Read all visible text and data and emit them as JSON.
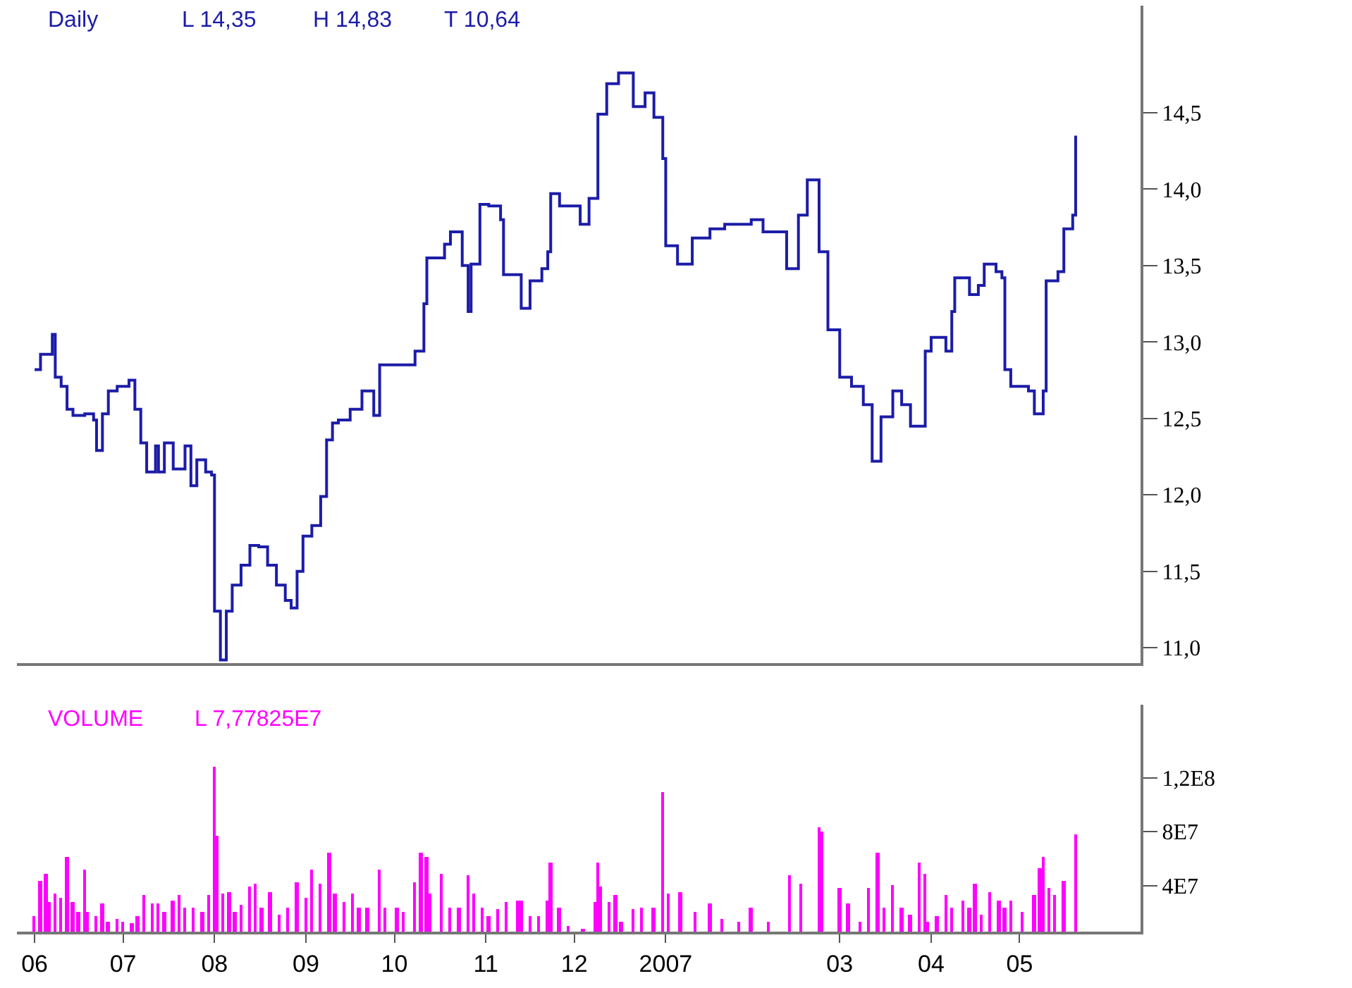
{
  "chart_data": [
    {
      "type": "step",
      "title": "Daily",
      "annotations": [
        "L 14,35",
        "H 14,83",
        "T 10,64"
      ],
      "x": [
        "2006-06-01",
        "2006-06-03",
        "2006-06-07",
        "2006-06-08",
        "2006-06-10",
        "2006-06-12",
        "2006-06-14",
        "2006-06-18",
        "2006-06-21",
        "2006-06-22",
        "2006-06-24",
        "2006-06-26",
        "2006-06-29",
        "2006-07-03",
        "2006-07-05",
        "2006-07-07",
        "2006-07-09",
        "2006-07-12",
        "2006-07-13",
        "2006-07-15",
        "2006-07-18",
        "2006-07-22",
        "2006-07-24",
        "2006-07-26",
        "2006-07-29",
        "2006-07-31",
        "2006-08-01",
        "2006-08-03",
        "2006-08-05",
        "2006-08-07",
        "2006-08-10",
        "2006-08-13",
        "2006-08-16",
        "2006-08-19",
        "2006-08-22",
        "2006-08-25",
        "2006-08-27",
        "2006-08-29",
        "2006-08-31",
        "2006-09-03",
        "2006-09-06",
        "2006-09-08",
        "2006-09-10",
        "2006-09-12",
        "2006-09-16",
        "2006-09-20",
        "2006-09-24",
        "2006-09-26",
        "2006-10-03",
        "2006-10-08",
        "2006-10-11",
        "2006-10-12",
        "2006-10-18",
        "2006-10-20",
        "2006-10-24",
        "2006-10-26",
        "2006-10-27",
        "2006-10-30",
        "2006-11-02",
        "2006-11-06",
        "2006-11-07",
        "2006-11-11",
        "2006-11-13",
        "2006-11-16",
        "2006-11-20",
        "2006-11-22",
        "2006-11-23",
        "2006-11-26",
        "2006-12-01",
        "2006-12-03",
        "2006-12-06",
        "2006-12-09",
        "2006-12-12",
        "2006-12-16",
        "2006-12-19",
        "2006-12-21",
        "2006-12-25",
        "2006-12-28",
        "2006-12-31",
        "2007-01-01",
        "2007-01-05",
        "2007-01-10",
        "2007-01-16",
        "2007-01-21",
        "2007-01-30",
        "2007-02-03",
        "2007-02-11",
        "2007-02-15",
        "2007-02-18",
        "2007-02-22",
        "2007-02-25",
        "2007-03-01",
        "2007-03-05",
        "2007-03-09",
        "2007-03-12",
        "2007-03-15",
        "2007-03-19",
        "2007-03-22",
        "2007-03-25",
        "2007-03-28",
        "2007-03-30",
        "2007-04-01",
        "2007-04-06",
        "2007-04-08",
        "2007-04-09",
        "2007-04-14",
        "2007-04-17",
        "2007-04-19",
        "2007-04-23",
        "2007-04-25",
        "2007-04-26",
        "2007-04-28",
        "2007-05-04",
        "2007-05-06",
        "2007-05-09",
        "2007-05-10",
        "2007-05-14",
        "2007-05-16",
        "2007-05-19",
        "2007-05-20"
      ],
      "series": [
        {
          "color": "#1c1ca8",
          "values": [
            12.82,
            12.92,
            13.05,
            12.77,
            12.71,
            12.56,
            12.52,
            12.53,
            12.49,
            12.29,
            12.53,
            12.68,
            12.71,
            12.75,
            12.56,
            12.34,
            12.15,
            12.32,
            12.15,
            12.34,
            12.17,
            12.32,
            12.06,
            12.23,
            12.15,
            12.13,
            11.24,
            10.92,
            11.24,
            11.41,
            11.54,
            11.67,
            11.66,
            11.54,
            11.41,
            11.31,
            11.26,
            11.5,
            11.73,
            11.8,
            11.99,
            12.36,
            12.47,
            12.49,
            12.56,
            12.68,
            12.52,
            12.85,
            12.85,
            12.94,
            13.25,
            13.55,
            13.64,
            13.72,
            13.5,
            13.2,
            13.51,
            13.9,
            13.89,
            13.8,
            13.44,
            13.44,
            13.22,
            13.4,
            13.48,
            13.59,
            13.97,
            13.89,
            13.89,
            13.77,
            13.94,
            14.49,
            14.69,
            14.76,
            14.76,
            14.54,
            14.63,
            14.47,
            14.2,
            13.63,
            13.51,
            13.68,
            13.74,
            13.77,
            13.8,
            13.72,
            13.48,
            13.83,
            14.06,
            13.59,
            13.08,
            12.77,
            12.71,
            12.59,
            12.22,
            12.51,
            12.68,
            12.59,
            12.45,
            12.45,
            12.94,
            13.03,
            12.94,
            13.2,
            13.42,
            13.31,
            13.37,
            13.51,
            13.46,
            13.42,
            12.82,
            12.71,
            12.68,
            12.53,
            12.68,
            13.4,
            13.46,
            13.74,
            13.83,
            14.35
          ]
        }
      ],
      "xlim": [
        "2006-05-26",
        "2007-06-11"
      ],
      "ylim": [
        10.9,
        15.2
      ],
      "yticks": [
        {
          "value": 11.0,
          "label": "11,0"
        },
        {
          "value": 11.5,
          "label": "11,5"
        },
        {
          "value": 12.0,
          "label": "12,0"
        },
        {
          "value": 12.5,
          "label": "12,5"
        },
        {
          "value": 13.0,
          "label": "13,0"
        },
        {
          "value": 13.5,
          "label": "13,5"
        },
        {
          "value": 14.0,
          "label": "14,0"
        },
        {
          "value": 14.5,
          "label": "14,5"
        }
      ],
      "tick_labels": "y"
    },
    {
      "type": "bar",
      "title": "VOLUME",
      "annotations": [
        "L 7,77825E7"
      ],
      "x": [
        "2006-06-01",
        "2006-06-03",
        "2006-06-05",
        "2006-06-06",
        "2006-06-08",
        "2006-06-10",
        "2006-06-12",
        "2006-06-14",
        "2006-06-16",
        "2006-06-18",
        "2006-06-19",
        "2006-06-22",
        "2006-06-24",
        "2006-06-26",
        "2006-06-29",
        "2006-07-01",
        "2006-07-04",
        "2006-07-06",
        "2006-07-08",
        "2006-07-11",
        "2006-07-13",
        "2006-07-15",
        "2006-07-18",
        "2006-07-20",
        "2006-07-22",
        "2006-07-25",
        "2006-07-28",
        "2006-07-30",
        "2006-08-01",
        "2006-08-02",
        "2006-08-04",
        "2006-08-06",
        "2006-08-08",
        "2006-08-10",
        "2006-08-13",
        "2006-08-15",
        "2006-08-17",
        "2006-08-20",
        "2006-08-23",
        "2006-08-26",
        "2006-08-29",
        "2006-09-01",
        "2006-09-03",
        "2006-09-06",
        "2006-09-09",
        "2006-09-11",
        "2006-09-14",
        "2006-09-17",
        "2006-09-19",
        "2006-09-22",
        "2006-09-26",
        "2006-09-28",
        "2006-10-02",
        "2006-10-04",
        "2006-10-08",
        "2006-10-10",
        "2006-10-12",
        "2006-10-13",
        "2006-10-17",
        "2006-10-20",
        "2006-10-23",
        "2006-10-26",
        "2006-10-28",
        "2006-10-31",
        "2006-11-02",
        "2006-11-05",
        "2006-11-08",
        "2006-11-12",
        "2006-11-13",
        "2006-11-16",
        "2006-11-19",
        "2006-11-22",
        "2006-11-23",
        "2006-11-26",
        "2006-11-29",
        "2006-12-04",
        "2006-12-08",
        "2006-12-09",
        "2006-12-10",
        "2006-12-13",
        "2006-12-15",
        "2006-12-17",
        "2006-12-21",
        "2006-12-24",
        "2006-12-28",
        "2006-12-31",
        "2007-01-02",
        "2007-01-06",
        "2007-01-11",
        "2007-01-16",
        "2007-01-20",
        "2007-01-26",
        "2007-01-30",
        "2007-02-05",
        "2007-02-12",
        "2007-02-16",
        "2007-02-22",
        "2007-02-23",
        "2007-03-01",
        "2007-03-04",
        "2007-03-08",
        "2007-03-11",
        "2007-03-14",
        "2007-03-16",
        "2007-03-19",
        "2007-03-22",
        "2007-03-25",
        "2007-03-28",
        "2007-03-30",
        "2007-03-31",
        "2007-04-03",
        "2007-04-06",
        "2007-04-08",
        "2007-04-12",
        "2007-04-14",
        "2007-04-16",
        "2007-04-18",
        "2007-04-21",
        "2007-04-24",
        "2007-04-26",
        "2007-04-28",
        "2007-05-02",
        "2007-05-06",
        "2007-05-08",
        "2007-05-09",
        "2007-05-11",
        "2007-05-13",
        "2007-05-16",
        "2007-05-20"
      ],
      "series": [
        {
          "color": "#ff00ff",
          "values": [
            17000000,
            44000000,
            49000000,
            28000000,
            34000000,
            31000000,
            61000000,
            28000000,
            21000000,
            52000000,
            21000000,
            17000000,
            27000000,
            13000000,
            15000000,
            13000000,
            12000000,
            17000000,
            33000000,
            27000000,
            27000000,
            21000000,
            29000000,
            33000000,
            24000000,
            24000000,
            21000000,
            33000000,
            128000000,
            77000000,
            34000000,
            35000000,
            21000000,
            26000000,
            39000000,
            41000000,
            24000000,
            35000000,
            18000000,
            24000000,
            43000000,
            31000000,
            52000000,
            41000000,
            64000000,
            34000000,
            28000000,
            34000000,
            24000000,
            24000000,
            52000000,
            24000000,
            24000000,
            21000000,
            43000000,
            64000000,
            61000000,
            34000000,
            49000000,
            24000000,
            24000000,
            48000000,
            34000000,
            24000000,
            17000000,
            23000000,
            28000000,
            29000000,
            29000000,
            17000000,
            17000000,
            29000000,
            57000000,
            24000000,
            10000000,
            8000000,
            28000000,
            57000000,
            39000000,
            28000000,
            33000000,
            13000000,
            23000000,
            24000000,
            24000000,
            109000000,
            34000000,
            35000000,
            21000000,
            27000000,
            15000000,
            13000000,
            24000000,
            13000000,
            48000000,
            41000000,
            83000000,
            80000000,
            38000000,
            27000000,
            13000000,
            38000000,
            64000000,
            24000000,
            40000000,
            24000000,
            18000000,
            57000000,
            49000000,
            13000000,
            17000000,
            33000000,
            24000000,
            29000000,
            24000000,
            41000000,
            18000000,
            35000000,
            29000000,
            24000000,
            29000000,
            21000000,
            33000000,
            53000000,
            61000000,
            38000000,
            33000000,
            44000000,
            78000000
          ]
        }
      ],
      "xlim": [
        "2006-05-26",
        "2007-06-11"
      ],
      "xticks": [
        {
          "value": "2006-06-01",
          "label": "06"
        },
        {
          "value": "2006-07-01",
          "label": "07"
        },
        {
          "value": "2006-08-01",
          "label": "08"
        },
        {
          "value": "2006-09-01",
          "label": "09"
        },
        {
          "value": "2006-10-01",
          "label": "10"
        },
        {
          "value": "2006-11-01",
          "label": "11"
        },
        {
          "value": "2006-12-01",
          "label": "12"
        },
        {
          "value": "2007-01-01",
          "label": "2007"
        },
        {
          "value": "2007-03-01",
          "label": "03"
        },
        {
          "value": "2007-04-01",
          "label": "04"
        },
        {
          "value": "2007-05-01",
          "label": "05"
        }
      ],
      "ylim": [
        6000000,
        174000000
      ],
      "yticks": [
        {
          "value": 40000000,
          "label": "4E7"
        },
        {
          "value": 80000000,
          "label": "8E7"
        },
        {
          "value": 120000000,
          "label": "1,2E8"
        }
      ]
    }
  ]
}
